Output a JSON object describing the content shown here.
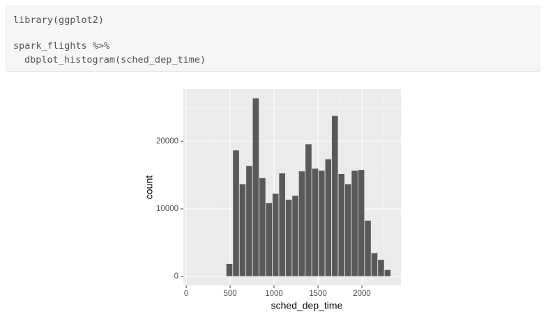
{
  "code": {
    "lines": [
      "library(ggplot2)",
      "spark_flights %>%",
      "dbplot_histogram(sched_dep_time)"
    ]
  },
  "chart_data": {
    "type": "histogram",
    "x_label": "sched_dep_time",
    "y_label": "count",
    "bins": [
      80,
      155,
      230,
      305,
      380,
      455,
      530,
      605,
      680,
      755,
      830,
      905,
      980,
      1055,
      1130,
      1205,
      1280,
      1355,
      1430,
      1505,
      1580,
      1655,
      1730,
      1805,
      1880,
      1955,
      2030,
      2105,
      2180,
      2255,
      2330
    ],
    "values": [
      0,
      0,
      0,
      0,
      0,
      1900,
      18700,
      13700,
      16400,
      26400,
      14600,
      10900,
      12300,
      15300,
      11400,
      12000,
      15600,
      19600,
      16000,
      15700,
      17400,
      23800,
      15200,
      13700,
      15700,
      15800,
      8300,
      3500,
      2500,
      1000
    ],
    "color": "#595959",
    "xlim": [
      -32,
      2444
    ],
    "xticks": [
      0,
      500,
      1000,
      1500,
      2000
    ],
    "ylim": [
      -1340,
      27730
    ],
    "yticks": [
      0,
      10000,
      20000
    ],
    "grid": true
  }
}
